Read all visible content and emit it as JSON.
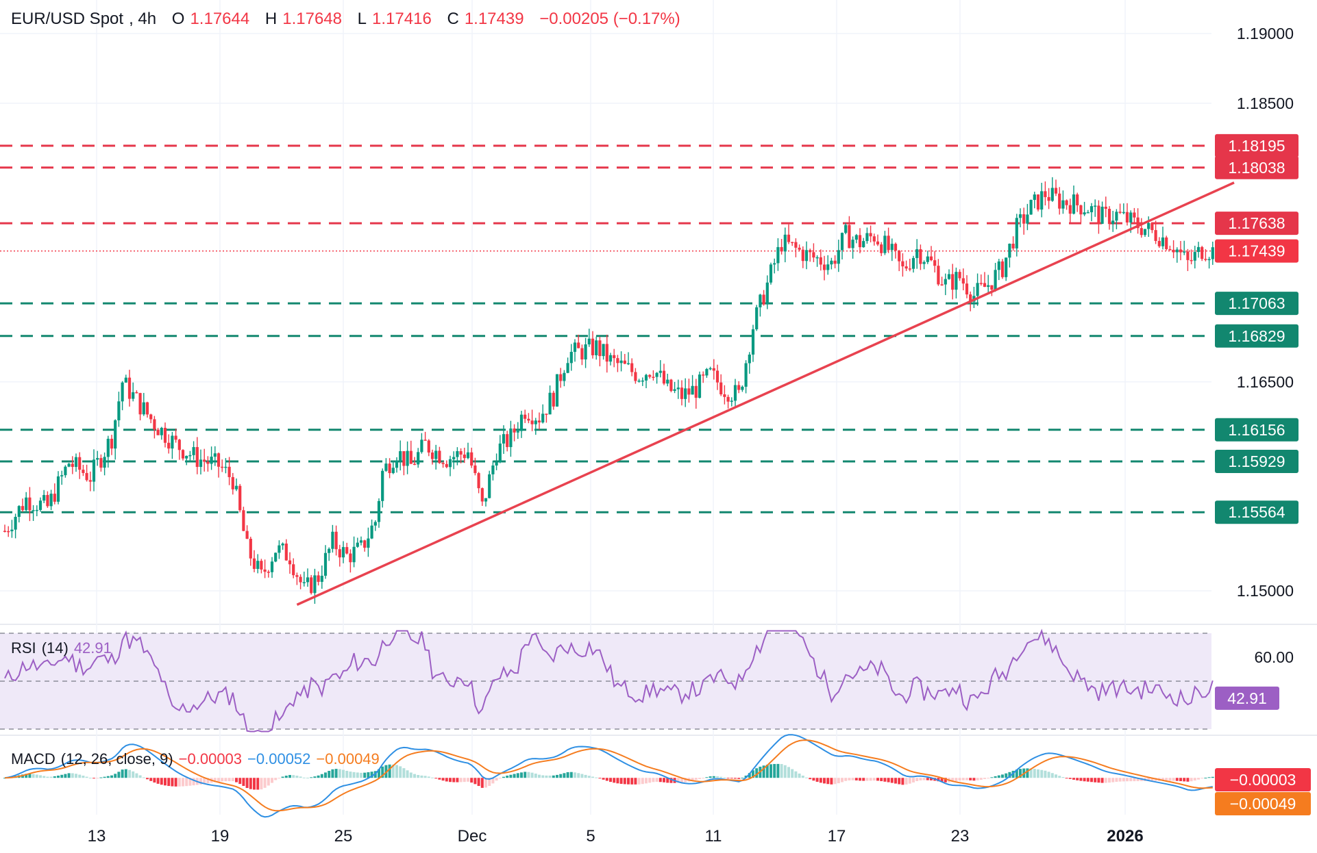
{
  "header": {
    "symbol": "EUR/USD Spot",
    "interval": "4h",
    "open_label": "O",
    "open": "1.17644",
    "high_label": "H",
    "high": "1.17648",
    "low_label": "L",
    "low": "1.17416",
    "close_label": "C",
    "close": "1.17439",
    "change": "−0.00205 (−0.17%)"
  },
  "colors": {
    "up": "#089981",
    "down": "#f23645",
    "resistance": "#e5364a",
    "support": "#12876f",
    "trendline": "#e8424f",
    "rsi": "#9c5fc4",
    "rsi_band": "#efe9f8",
    "macd": "#2e8fe3",
    "signal": "#f57c1f",
    "hist_up_strong": "#26a69a",
    "hist_up_weak": "#b2dfdb",
    "hist_down_strong": "#f23645",
    "hist_down_weak": "#fccbcd"
  },
  "price_axis": {
    "ticks": [
      "1.19000",
      "1.18500",
      "1.16500",
      "1.15000"
    ],
    "levels": [
      {
        "value": "1.18195",
        "kind": "resistance"
      },
      {
        "value": "1.18038",
        "kind": "resistance"
      },
      {
        "value": "1.17638",
        "kind": "resistance"
      },
      {
        "value": "1.17439",
        "kind": "current"
      },
      {
        "value": "1.17063",
        "kind": "support"
      },
      {
        "value": "1.16829",
        "kind": "support"
      },
      {
        "value": "1.16156",
        "kind": "support"
      },
      {
        "value": "1.15929",
        "kind": "support"
      },
      {
        "value": "1.15564",
        "kind": "support"
      }
    ]
  },
  "time_axis": [
    "13",
    "19",
    "25",
    "Dec",
    "5",
    "11",
    "17",
    "23",
    "2026"
  ],
  "rsi": {
    "title": "RSI",
    "params": "(14)",
    "value": "42.91",
    "axis_tick": "60.00",
    "upper": 70,
    "mid": 50,
    "lower": 30
  },
  "macd": {
    "title": "MACD",
    "params": "(12, 26, close, 9)",
    "hist": "−0.00003",
    "macd": "−0.00052",
    "signal": "−0.00049"
  },
  "chart_data": {
    "type": "candlestick",
    "instrument": "EUR/USD Spot",
    "timeframe": "4h",
    "ylim": [
      1.1475,
      1.1915
    ],
    "resistance_levels": [
      1.18195,
      1.18038,
      1.17638
    ],
    "support_levels": [
      1.17063,
      1.16829,
      1.16156,
      1.15929,
      1.15564
    ],
    "last_price": 1.17439,
    "trendline": [
      {
        "bar": 82,
        "price": 1.149
      },
      {
        "bar": 345,
        "price": 1.1793
      }
    ],
    "key_closes": [
      [
        0,
        1.1543
      ],
      [
        6,
        1.1566
      ],
      [
        12,
        1.156
      ],
      [
        18,
        1.1592
      ],
      [
        24,
        1.1582
      ],
      [
        30,
        1.161
      ],
      [
        33,
        1.165
      ],
      [
        36,
        1.164
      ],
      [
        42,
        1.162
      ],
      [
        48,
        1.1605
      ],
      [
        54,
        1.1595
      ],
      [
        60,
        1.159
      ],
      [
        64,
        1.158
      ],
      [
        68,
        1.153
      ],
      [
        72,
        1.151
      ],
      [
        76,
        1.153
      ],
      [
        80,
        1.1525
      ],
      [
        84,
        1.15
      ],
      [
        88,
        1.151
      ],
      [
        92,
        1.1535
      ],
      [
        96,
        1.1525
      ],
      [
        100,
        1.153
      ],
      [
        104,
        1.155
      ],
      [
        106,
        1.1585
      ],
      [
        110,
        1.16
      ],
      [
        114,
        1.159
      ],
      [
        118,
        1.1605
      ],
      [
        124,
        1.1595
      ],
      [
        130,
        1.16
      ],
      [
        134,
        1.156
      ],
      [
        138,
        1.16
      ],
      [
        142,
        1.161
      ],
      [
        146,
        1.163
      ],
      [
        150,
        1.1625
      ],
      [
        154,
        1.164
      ],
      [
        158,
        1.167
      ],
      [
        162,
        1.1672
      ],
      [
        166,
        1.1675
      ],
      [
        170,
        1.1665
      ],
      [
        174,
        1.166
      ],
      [
        178,
        1.1655
      ],
      [
        182,
        1.166
      ],
      [
        186,
        1.1645
      ],
      [
        190,
        1.164
      ],
      [
        194,
        1.1645
      ],
      [
        198,
        1.1655
      ],
      [
        202,
        1.1645
      ],
      [
        206,
        1.164
      ],
      [
        210,
        1.169
      ],
      [
        214,
        1.172
      ],
      [
        218,
        1.175
      ],
      [
        222,
        1.1745
      ],
      [
        226,
        1.174
      ],
      [
        232,
        1.1735
      ],
      [
        236,
        1.1755
      ],
      [
        240,
        1.175
      ],
      [
        244,
        1.1755
      ],
      [
        248,
        1.1745
      ],
      [
        252,
        1.173
      ],
      [
        256,
        1.1745
      ],
      [
        260,
        1.1735
      ],
      [
        264,
        1.172
      ],
      [
        268,
        1.1725
      ],
      [
        272,
        1.1712
      ],
      [
        276,
        1.172
      ],
      [
        280,
        1.1732
      ],
      [
        284,
        1.176
      ],
      [
        288,
        1.1775
      ],
      [
        292,
        1.1785
      ],
      [
        296,
        1.178
      ],
      [
        300,
        1.1778
      ],
      [
        304,
        1.1775
      ],
      [
        308,
        1.1768
      ],
      [
        312,
        1.177
      ],
      [
        316,
        1.1765
      ],
      [
        320,
        1.176
      ],
      [
        324,
        1.1755
      ],
      [
        328,
        1.1748
      ],
      [
        332,
        1.1735
      ],
      [
        336,
        1.1745
      ],
      [
        339,
        1.1744
      ]
    ],
    "rsi_range": [
      28,
      72
    ],
    "macd_range": [
      -0.0022,
      0.0023
    ]
  }
}
